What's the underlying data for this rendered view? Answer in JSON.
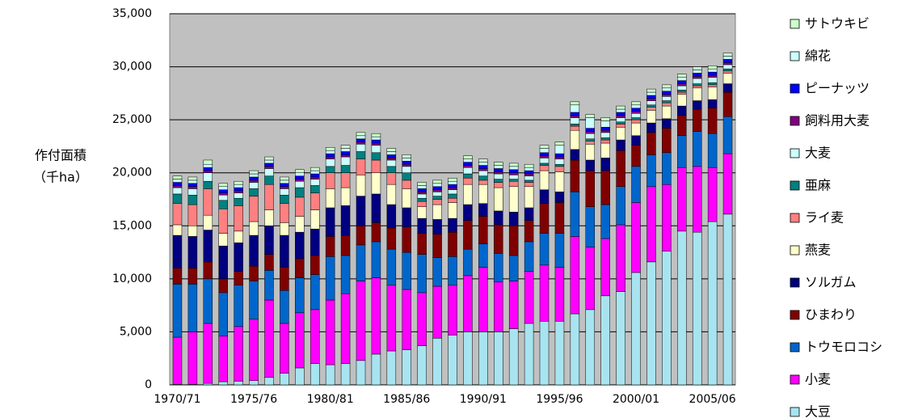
{
  "chart_data": {
    "type": "stacked_bar",
    "ylabel": "作付面積",
    "ylabel_unit": "（千ha）",
    "categories": [
      "1970/71",
      null,
      null,
      null,
      null,
      "1975/76",
      null,
      null,
      null,
      null,
      "1980/81",
      null,
      null,
      null,
      null,
      "1985/86",
      null,
      null,
      null,
      null,
      "1990/91",
      null,
      null,
      null,
      null,
      "1995/96",
      null,
      null,
      null,
      null,
      "2000/01",
      null,
      null,
      null,
      null,
      "2005/06",
      null
    ],
    "ylim": [
      0,
      35000
    ],
    "yticks": [
      0,
      {
        "value": 5000,
        "label": "5,000"
      },
      {
        "value": 10000,
        "label": "10,000"
      },
      {
        "value": 15000,
        "label": "15,000"
      },
      {
        "value": 20000,
        "label": "20,000"
      },
      {
        "value": 25000,
        "label": "25,000"
      },
      {
        "value": 30000,
        "label": "30,000"
      },
      {
        "value": 35000,
        "label": "35,000"
      }
    ],
    "grid": true,
    "series": [
      {
        "name": "大豆",
        "color": "#a8e4f0",
        "values": [
          50,
          50,
          150,
          300,
          350,
          400,
          700,
          1100,
          1600,
          2000,
          1900,
          2000,
          2300,
          2900,
          3200,
          3300,
          3700,
          4400,
          4700,
          5000,
          5000,
          5000,
          5300,
          5800,
          6000,
          6000,
          6700,
          7100,
          8400,
          8800,
          10600,
          11600,
          12600,
          14500,
          14400,
          15400,
          16100
        ]
      },
      {
        "name": "小麦",
        "color": "#ff00ff",
        "values": [
          4450,
          4950,
          5650,
          4300,
          5150,
          5800,
          7300,
          4700,
          5200,
          5100,
          6100,
          6600,
          7500,
          7200,
          6200,
          5700,
          5000,
          4900,
          4700,
          5300,
          6100,
          4700,
          4500,
          4900,
          5300,
          5100,
          7300,
          5900,
          5400,
          6300,
          6600,
          7100,
          6300,
          6000,
          6200,
          5100,
          5700
        ]
      },
      {
        "name": "トウモロコシ",
        "color": "#0066cc",
        "values": [
          5000,
          4500,
          4200,
          4100,
          3900,
          3600,
          2800,
          3100,
          3300,
          3300,
          4100,
          3600,
          3400,
          3400,
          3400,
          3500,
          3600,
          2700,
          2700,
          2500,
          2200,
          2700,
          2400,
          2800,
          3000,
          3200,
          4200,
          3800,
          3200,
          3600,
          3400,
          3000,
          3000,
          3000,
          3300,
          3200,
          3500
        ]
      },
      {
        "name": "ひまわり",
        "color": "#800000",
        "values": [
          1500,
          1500,
          1600,
          1300,
          1300,
          1400,
          1500,
          2200,
          1800,
          1800,
          1900,
          1900,
          1800,
          1800,
          2000,
          2400,
          2000,
          2200,
          2300,
          2700,
          2600,
          2700,
          2800,
          2000,
          2800,
          2900,
          3000,
          3400,
          3200,
          3400,
          2000,
          2100,
          2300,
          1900,
          2100,
          2400,
          2300
        ]
      },
      {
        "name": "ソルガム",
        "color": "#000080",
        "values": [
          3100,
          3000,
          3000,
          3100,
          2700,
          2900,
          2700,
          3000,
          2500,
          2500,
          2700,
          2800,
          2800,
          2700,
          2200,
          1800,
          1400,
          1400,
          1300,
          1500,
          1200,
          1300,
          1300,
          1200,
          1300,
          1000,
          1000,
          1000,
          1200,
          1000,
          900,
          900,
          900,
          900,
          800,
          800,
          800
        ]
      },
      {
        "name": "燕麦",
        "color": "#ffffcc",
        "values": [
          1000,
          1000,
          1400,
          1200,
          1100,
          1300,
          1500,
          1200,
          1500,
          1800,
          1800,
          1700,
          2000,
          2000,
          1900,
          1800,
          1100,
          1400,
          1500,
          1900,
          1800,
          2200,
          2400,
          2000,
          1800,
          1900,
          1800,
          1500,
          1400,
          1200,
          1200,
          1200,
          1200,
          1100,
          1200,
          1200,
          1000
        ]
      },
      {
        "name": "ライ麦",
        "color": "#ff8080",
        "values": [
          2000,
          2000,
          2500,
          2300,
          2400,
          2400,
          2400,
          1800,
          1800,
          1600,
          1500,
          1400,
          1500,
          1200,
          1100,
          800,
          500,
          500,
          400,
          600,
          400,
          500,
          500,
          400,
          500,
          500,
          400,
          300,
          300,
          300,
          300,
          300,
          300,
          200,
          200,
          200,
          200
        ]
      },
      {
        "name": "亜麻",
        "color": "#008080",
        "values": [
          900,
          900,
          700,
          800,
          700,
          700,
          800,
          800,
          900,
          700,
          600,
          700,
          700,
          700,
          600,
          700,
          300,
          300,
          400,
          400,
          400,
          300,
          200,
          200,
          200,
          200,
          200,
          200,
          200,
          200,
          200,
          200,
          200,
          200,
          200,
          200,
          200
        ]
      },
      {
        "name": "大麦",
        "color": "#ccffff",
        "values": [
          600,
          600,
          800,
          500,
          500,
          600,
          700,
          600,
          600,
          600,
          700,
          800,
          700,
          700,
          600,
          600,
          400,
          400,
          400,
          600,
          500,
          500,
          400,
          400,
          500,
          500,
          600,
          500,
          500,
          400,
          400,
          400,
          400,
          400,
          500,
          500,
          400
        ]
      },
      {
        "name": "飼料用大麦",
        "color": "#800080",
        "values": [
          200,
          200,
          200,
          200,
          200,
          200,
          200,
          200,
          200,
          200,
          200,
          200,
          200,
          200,
          200,
          200,
          200,
          200,
          200,
          200,
          200,
          200,
          200,
          200,
          200,
          200,
          200,
          200,
          200,
          200,
          200,
          200,
          200,
          200,
          200,
          200,
          200
        ]
      },
      {
        "name": "ピーナッツ",
        "color": "#0000ff",
        "values": [
          300,
          300,
          300,
          300,
          300,
          300,
          300,
          300,
          300,
          300,
          300,
          300,
          300,
          300,
          300,
          300,
          300,
          300,
          300,
          300,
          300,
          300,
          300,
          300,
          300,
          300,
          300,
          300,
          300,
          300,
          300,
          300,
          300,
          300,
          300,
          300,
          300
        ]
      },
      {
        "name": "綿花",
        "color": "#ccffff",
        "values": [
          300,
          300,
          300,
          300,
          300,
          300,
          300,
          300,
          300,
          300,
          300,
          300,
          300,
          300,
          300,
          300,
          300,
          300,
          300,
          300,
          300,
          300,
          300,
          300,
          400,
          800,
          700,
          1000,
          600,
          300,
          300,
          300,
          300,
          300,
          300,
          300,
          300
        ]
      },
      {
        "name": "サトウキビ",
        "color": "#ccffcc",
        "values": [
          300,
          300,
          400,
          300,
          300,
          300,
          300,
          300,
          300,
          300,
          300,
          300,
          300,
          300,
          300,
          300,
          300,
          300,
          300,
          300,
          300,
          300,
          300,
          300,
          300,
          300,
          300,
          300,
          300,
          300,
          300,
          300,
          300,
          300,
          300,
          300,
          300
        ]
      }
    ]
  }
}
